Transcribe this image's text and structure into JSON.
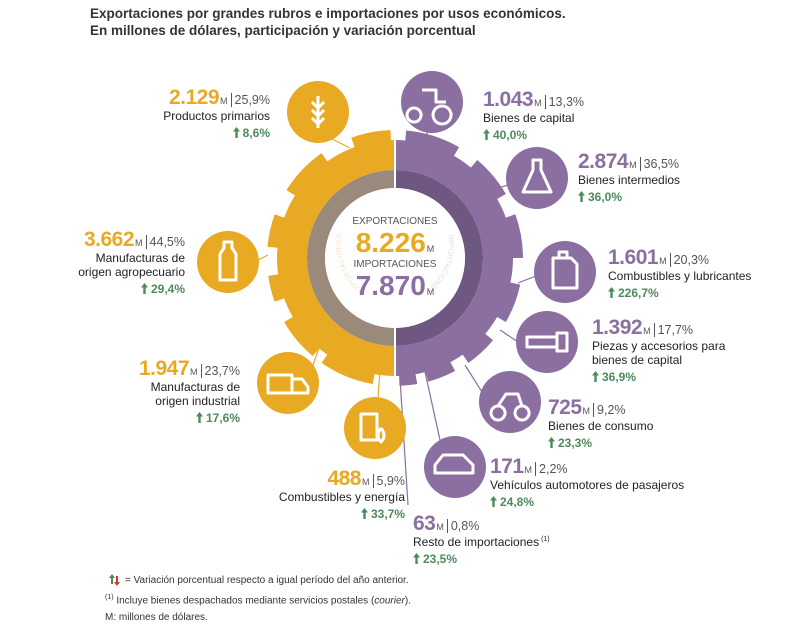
{
  "header": {
    "title": "Exportaciones por grandes rubros e importaciones por usos económicos.",
    "subtitle": "En millones de dólares, participación y variación porcentual"
  },
  "unit": "M",
  "center": {
    "exports_label": "EXPORTACIONES",
    "exports_value": "8.226",
    "imports_label": "IMPORTACIONES",
    "imports_value": "7.870",
    "ring_left": "EXPORTACIONES",
    "ring_right": "IMPORTACIONES"
  },
  "exports": [
    {
      "value": "2.129",
      "share": "25,9%",
      "label": [
        "Productos primarios"
      ],
      "variation": "8,6%"
    },
    {
      "value": "3.662",
      "share": "44,5%",
      "label": [
        "Manufacturas de",
        "origen agropecuario"
      ],
      "variation": "29,4%"
    },
    {
      "value": "1.947",
      "share": "23,7%",
      "label": [
        "Manufacturas de",
        "origen industrial"
      ],
      "variation": "17,6%"
    },
    {
      "value": "488",
      "share": "5,9%",
      "label": [
        "Combustibles y energía"
      ],
      "variation": "33,7%"
    }
  ],
  "imports": [
    {
      "value": "1.043",
      "share": "13,3%",
      "label": [
        "Bienes de capital"
      ],
      "variation": "40,0%"
    },
    {
      "value": "2.874",
      "share": "36,5%",
      "label": [
        "Bienes intermedios"
      ],
      "variation": "36,0%"
    },
    {
      "value": "1.601",
      "share": "20,3%",
      "label": [
        "Combustibles y lubricantes"
      ],
      "variation": "226,7%"
    },
    {
      "value": "1.392",
      "share": "17,7%",
      "label": [
        "Piezas y accesorios para",
        "bienes de capital"
      ],
      "variation": "36,9%"
    },
    {
      "value": "725",
      "share": "9,2%",
      "label": [
        "Bienes de consumo"
      ],
      "variation": "23,3%"
    },
    {
      "value": "171",
      "share": "2,2%",
      "label": [
        "Vehículos automotores de pasajeros"
      ],
      "variation": "24,8%"
    },
    {
      "value": "63",
      "share": "0,8%",
      "label": [
        "Resto de importaciones"
      ],
      "variation": "23,5%"
    }
  ],
  "footnotes": {
    "legend": "= Variación porcentual respecto a igual período del año anterior.",
    "note_mark": "(1)",
    "note_parts": [
      "Incluye bienes despachados mediante servicios postales (",
      "courier",
      ")."
    ],
    "m_note": "M: millones de dólares."
  }
}
